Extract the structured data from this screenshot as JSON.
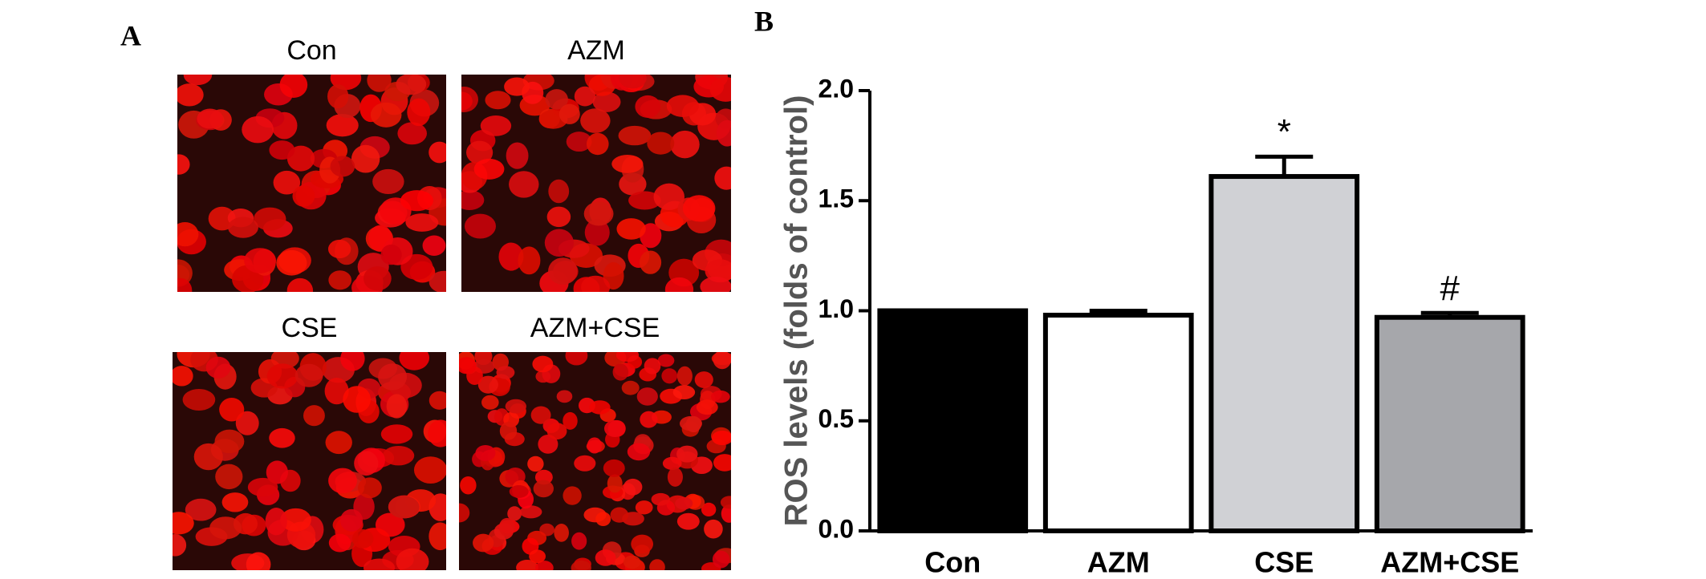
{
  "panel_labels": [
    "A",
    "B"
  ],
  "images": [
    {
      "label": "Con"
    },
    {
      "label": "AZM"
    },
    {
      "label": "CSE"
    },
    {
      "label": "AZM+CSE"
    }
  ],
  "chart_data": {
    "type": "bar",
    "y_label": "ROS levels (folds of control)",
    "categories": [
      "Con",
      "AZM",
      "CSE",
      "AZM+CSE"
    ],
    "values": [
      1.0,
      0.98,
      1.61,
      0.97
    ],
    "errors": [
      0.0,
      0.02,
      0.09,
      0.02
    ],
    "colors": [
      "#000000",
      "#ffffff",
      "#d0d1d5",
      "#a6a7ab"
    ],
    "annotations": [
      null,
      null,
      "*",
      "#"
    ],
    "ylim": [
      0,
      2.0
    ],
    "yticks": [
      {
        "value": 0,
        "label": "0.0"
      },
      0.5,
      {
        "value": 1,
        "label": "1.0"
      },
      1.5,
      {
        "value": 2,
        "label": "2.0"
      }
    ]
  }
}
